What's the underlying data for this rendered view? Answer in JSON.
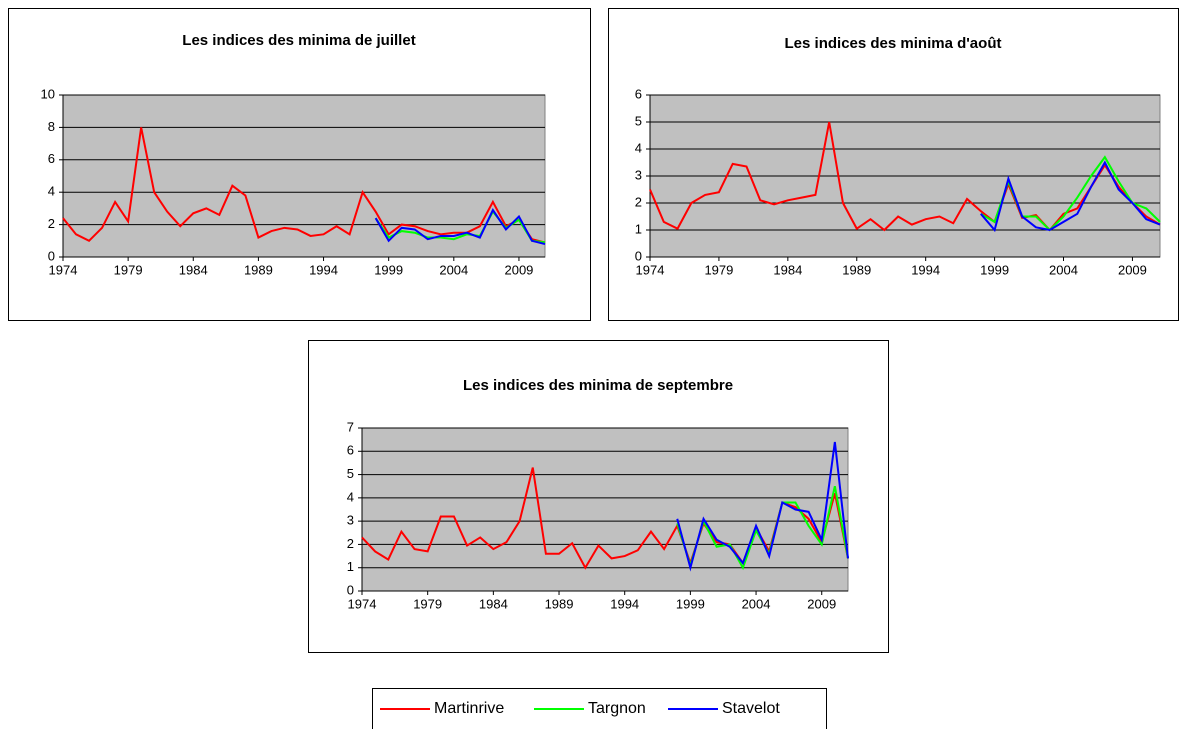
{
  "chart_data": [
    {
      "type": "line",
      "title": "Les indices des minima de juillet",
      "x": [
        1974,
        1975,
        1976,
        1977,
        1978,
        1979,
        1980,
        1981,
        1982,
        1983,
        1984,
        1985,
        1986,
        1987,
        1988,
        1989,
        1990,
        1991,
        1992,
        1993,
        1994,
        1995,
        1996,
        1997,
        1998,
        1999,
        2000,
        2001,
        2002,
        2003,
        2004,
        2005,
        2006,
        2007,
        2008,
        2009,
        2010,
        2011
      ],
      "xlim": [
        1974,
        2011
      ],
      "xticks": [
        1974,
        1979,
        1984,
        1989,
        1994,
        1999,
        2004,
        2009
      ],
      "ylim": [
        0,
        10
      ],
      "yticks": [
        0,
        2,
        4,
        6,
        8,
        10
      ],
      "grid": true,
      "series": [
        {
          "name": "Martinrive",
          "color": "#ff0000",
          "values": [
            2.4,
            1.4,
            1.0,
            1.8,
            3.4,
            2.2,
            8.0,
            4.0,
            2.8,
            1.9,
            2.7,
            3.0,
            2.6,
            4.4,
            3.8,
            1.2,
            1.6,
            1.8,
            1.7,
            1.3,
            1.4,
            1.9,
            1.4,
            4.0,
            2.8,
            1.4,
            2.0,
            1.9,
            1.6,
            1.4,
            1.5,
            1.5,
            1.9,
            3.4,
            1.9,
            2.3,
            1.1,
            0.9
          ]
        },
        {
          "name": "Targnon",
          "color": "#00ff00",
          "values": [
            null,
            null,
            null,
            null,
            null,
            null,
            null,
            null,
            null,
            null,
            null,
            null,
            null,
            null,
            null,
            null,
            null,
            null,
            null,
            null,
            null,
            null,
            null,
            null,
            2.4,
            1.2,
            1.6,
            1.5,
            1.2,
            1.2,
            1.1,
            1.4,
            1.3,
            2.8,
            1.8,
            2.3,
            1.0,
            0.9
          ]
        },
        {
          "name": "Stavelot",
          "color": "#0000ff",
          "values": [
            null,
            null,
            null,
            null,
            null,
            null,
            null,
            null,
            null,
            null,
            null,
            null,
            null,
            null,
            null,
            null,
            null,
            null,
            null,
            null,
            null,
            null,
            null,
            null,
            2.4,
            1.0,
            1.8,
            1.7,
            1.1,
            1.3,
            1.3,
            1.5,
            1.2,
            2.9,
            1.7,
            2.5,
            1.0,
            0.8
          ]
        }
      ]
    },
    {
      "type": "line",
      "title": "Les indices des minima d'août",
      "x": [
        1974,
        1975,
        1976,
        1977,
        1978,
        1979,
        1980,
        1981,
        1982,
        1983,
        1984,
        1985,
        1986,
        1987,
        1988,
        1989,
        1990,
        1991,
        1992,
        1993,
        1994,
        1995,
        1996,
        1997,
        1998,
        1999,
        2000,
        2001,
        2002,
        2003,
        2004,
        2005,
        2006,
        2007,
        2008,
        2009,
        2010,
        2011
      ],
      "xlim": [
        1974,
        2011
      ],
      "xticks": [
        1974,
        1979,
        1984,
        1989,
        1994,
        1999,
        2004,
        2009
      ],
      "ylim": [
        0,
        6
      ],
      "yticks": [
        0,
        1,
        2,
        3,
        4,
        5,
        6
      ],
      "grid": true,
      "series": [
        {
          "name": "Martinrive",
          "color": "#ff0000",
          "values": [
            2.5,
            1.3,
            1.05,
            2.0,
            2.3,
            2.4,
            3.45,
            3.35,
            2.1,
            1.95,
            2.1,
            2.2,
            2.3,
            5.0,
            2.0,
            1.05,
            1.4,
            1.0,
            1.5,
            1.2,
            1.4,
            1.5,
            1.25,
            2.15,
            1.7,
            1.3,
            2.7,
            1.45,
            1.55,
            1.0,
            1.6,
            1.8,
            2.6,
            3.4,
            2.6,
            2.0,
            1.5,
            1.2
          ]
        },
        {
          "name": "Targnon",
          "color": "#00ff00",
          "values": [
            null,
            null,
            null,
            null,
            null,
            null,
            null,
            null,
            null,
            null,
            null,
            null,
            null,
            null,
            null,
            null,
            null,
            null,
            null,
            null,
            null,
            null,
            null,
            null,
            1.6,
            1.3,
            2.8,
            1.5,
            1.5,
            1.0,
            1.5,
            2.2,
            3.0,
            3.7,
            2.8,
            2.0,
            1.8,
            1.3
          ]
        },
        {
          "name": "Stavelot",
          "color": "#0000ff",
          "values": [
            null,
            null,
            null,
            null,
            null,
            null,
            null,
            null,
            null,
            null,
            null,
            null,
            null,
            null,
            null,
            null,
            null,
            null,
            null,
            null,
            null,
            null,
            null,
            null,
            1.6,
            1.0,
            2.9,
            1.5,
            1.1,
            1.0,
            1.3,
            1.6,
            2.6,
            3.5,
            2.5,
            2.0,
            1.4,
            1.2
          ]
        }
      ]
    },
    {
      "type": "line",
      "title": "Les indices des minima de septembre",
      "x": [
        1974,
        1975,
        1976,
        1977,
        1978,
        1979,
        1980,
        1981,
        1982,
        1983,
        1984,
        1985,
        1986,
        1987,
        1988,
        1989,
        1990,
        1991,
        1992,
        1993,
        1994,
        1995,
        1996,
        1997,
        1998,
        1999,
        2000,
        2001,
        2002,
        2003,
        2004,
        2005,
        2006,
        2007,
        2008,
        2009,
        2010,
        2011
      ],
      "xlim": [
        1974,
        2011
      ],
      "xticks": [
        1974,
        1979,
        1984,
        1989,
        1994,
        1999,
        2004,
        2009
      ],
      "ylim": [
        0,
        7
      ],
      "yticks": [
        0,
        1,
        2,
        3,
        4,
        5,
        6,
        7
      ],
      "grid": true,
      "series": [
        {
          "name": "Martinrive",
          "color": "#ff0000",
          "values": [
            2.3,
            1.7,
            1.35,
            2.55,
            1.8,
            1.7,
            3.2,
            3.2,
            1.95,
            2.3,
            1.8,
            2.1,
            3.0,
            5.3,
            1.6,
            1.6,
            2.05,
            1.0,
            1.95,
            1.4,
            1.5,
            1.75,
            2.55,
            1.8,
            2.8,
            1.2,
            2.9,
            2.1,
            2.0,
            1.2,
            2.7,
            1.7,
            3.8,
            3.6,
            3.1,
            2.1,
            4.2,
            1.4
          ]
        },
        {
          "name": "Targnon",
          "color": "#00ff00",
          "values": [
            null,
            null,
            null,
            null,
            null,
            null,
            null,
            null,
            null,
            null,
            null,
            null,
            null,
            null,
            null,
            null,
            null,
            null,
            null,
            null,
            null,
            null,
            null,
            null,
            2.9,
            1.1,
            3.0,
            1.9,
            2.0,
            1.0,
            2.6,
            1.6,
            3.8,
            3.8,
            2.8,
            2.0,
            4.5,
            1.4
          ]
        },
        {
          "name": "Stavelot",
          "color": "#0000ff",
          "values": [
            null,
            null,
            null,
            null,
            null,
            null,
            null,
            null,
            null,
            null,
            null,
            null,
            null,
            null,
            null,
            null,
            null,
            null,
            null,
            null,
            null,
            null,
            null,
            null,
            3.1,
            1.0,
            3.1,
            2.2,
            1.9,
            1.2,
            2.8,
            1.5,
            3.8,
            3.5,
            3.4,
            2.2,
            6.4,
            1.4
          ]
        }
      ]
    }
  ]
}
